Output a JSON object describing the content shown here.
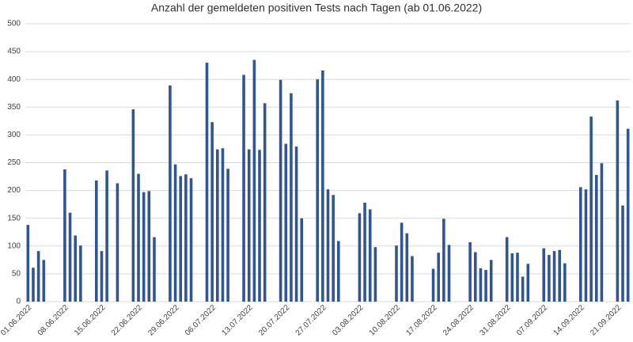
{
  "chart_data": {
    "type": "bar",
    "title": "Anzahl der gemeldeten positiven Tests nach Tagen (ab 01.06.2022)",
    "categories": [
      "01.06.2022",
      null,
      null,
      null,
      null,
      null,
      null,
      "08.06.2022",
      null,
      null,
      null,
      null,
      null,
      null,
      "15.06.2022",
      null,
      null,
      null,
      null,
      null,
      null,
      "22.06.2022",
      null,
      null,
      null,
      null,
      null,
      null,
      "29.06.2022",
      null,
      null,
      null,
      null,
      null,
      null,
      "06.07.2022",
      null,
      null,
      null,
      null,
      null,
      null,
      "13.07.2022",
      null,
      null,
      null,
      null,
      null,
      null,
      "20.07.2022",
      null,
      null,
      null,
      null,
      null,
      null,
      "27.07.2022",
      null,
      null,
      null,
      null,
      null,
      null,
      "03.08.2022",
      null,
      null,
      null,
      null,
      null,
      null,
      "10.08.2022",
      null,
      null,
      null,
      null,
      null,
      null,
      "17.08.2022",
      null,
      null,
      null,
      null,
      null,
      null,
      "24.08.2022",
      null,
      null,
      null,
      null,
      null,
      null,
      "31.08.2022",
      null,
      null,
      null,
      null,
      null,
      null,
      "07.09.2022",
      null,
      null,
      null,
      null,
      null,
      null,
      "14.09.2022",
      null,
      null,
      null,
      null,
      null,
      null,
      "21.09.2022",
      null,
      null
    ],
    "values": [
      138,
      61,
      91,
      75,
      null,
      null,
      null,
      238,
      160,
      119,
      101,
      null,
      null,
      218,
      91,
      236,
      null,
      213,
      null,
      null,
      346,
      230,
      197,
      199,
      116,
      null,
      null,
      389,
      247,
      226,
      229,
      222,
      null,
      null,
      430,
      323,
      274,
      276,
      239,
      null,
      null,
      408,
      274,
      435,
      273,
      357,
      null,
      null,
      399,
      284,
      375,
      279,
      150,
      null,
      null,
      400,
      416,
      202,
      192,
      109,
      null,
      null,
      null,
      159,
      178,
      166,
      98,
      null,
      null,
      null,
      101,
      142,
      123,
      82,
      null,
      null,
      null,
      59,
      88,
      149,
      102,
      null,
      null,
      null,
      107,
      89,
      60,
      57,
      75,
      null,
      null,
      116,
      87,
      88,
      45,
      68,
      null,
      null,
      96,
      84,
      91,
      93,
      69,
      null,
      null,
      206,
      202,
      333,
      228,
      249,
      null,
      null,
      362,
      173,
      311
    ],
    "color": "#2f5597",
    "ylim": [
      0,
      500
    ],
    "yticks": [
      0,
      50,
      100,
      150,
      200,
      250,
      300,
      350,
      400,
      450,
      500
    ],
    "grid": true
  }
}
